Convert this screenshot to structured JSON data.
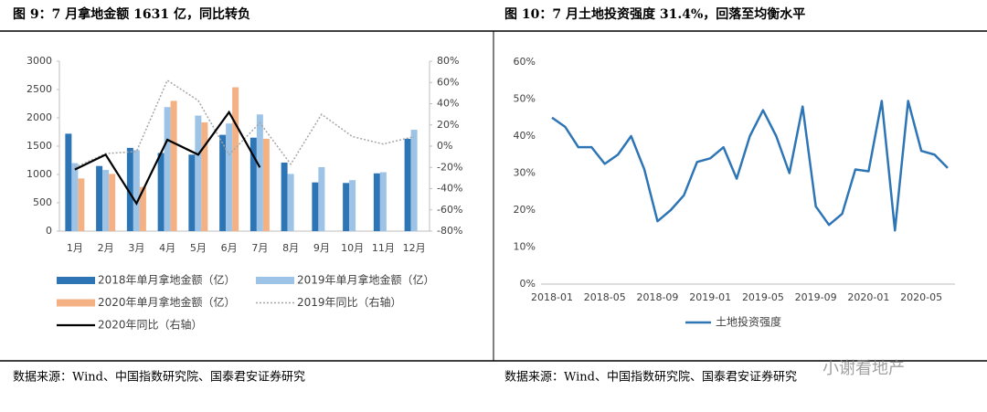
{
  "chart_data": [
    {
      "type": "combo",
      "title": "图 9：7 月拿地金额 1631 亿，同比转负",
      "categories": [
        "1月",
        "2月",
        "3月",
        "4月",
        "5月",
        "6月",
        "7月",
        "8月",
        "9月",
        "10月",
        "11月",
        "12月"
      ],
      "series": [
        {
          "name": "2018年单月拿地金额（亿）",
          "kind": "bar",
          "color": "#2e75b6",
          "values": [
            1720,
            1150,
            1470,
            1380,
            1350,
            1700,
            1650,
            1210,
            860,
            850,
            1020,
            1630
          ]
        },
        {
          "name": "2019年单月拿地金额（亿）",
          "kind": "bar",
          "color": "#9dc3e6",
          "values": [
            1200,
            1080,
            1430,
            2190,
            2040,
            1900,
            2060,
            1010,
            1130,
            900,
            1040,
            1790
          ]
        },
        {
          "name": "2020年单月拿地金额（亿）",
          "kind": "bar",
          "color": "#f4b183",
          "values": [
            930,
            1010,
            780,
            2300,
            1920,
            2540,
            1631,
            null,
            null,
            null,
            null,
            null
          ]
        },
        {
          "name": "2019年同比（右轴）",
          "kind": "line",
          "axis": "y2",
          "style": "dotted",
          "color": "#a6a6a6",
          "values": [
            -20,
            -7,
            -5,
            62,
            43,
            -8,
            22,
            -17,
            30,
            9,
            2,
            9
          ]
        },
        {
          "name": "2020年同比（右轴）",
          "kind": "line",
          "axis": "y2",
          "style": "solid",
          "color": "#000000",
          "values": [
            -22,
            -8,
            -54,
            6,
            -8,
            32,
            -20,
            null,
            null,
            null,
            null,
            null
          ]
        }
      ],
      "ylim": [
        0,
        3000
      ],
      "yticks": [
        0,
        500,
        1000,
        1500,
        2000,
        2500,
        3000
      ],
      "y2lim": [
        -80,
        80
      ],
      "y2ticks": [
        {
          "value": -80,
          "label": "-80%"
        },
        {
          "value": -60,
          "label": "-60%"
        },
        {
          "value": -40,
          "label": "-40%"
        },
        {
          "value": -20,
          "label": "-20%"
        },
        {
          "value": 0,
          "label": "0%"
        },
        {
          "value": 20,
          "label": "20%"
        },
        {
          "value": 40,
          "label": "40%"
        },
        {
          "value": 60,
          "label": "60%"
        },
        {
          "value": 80,
          "label": "80%"
        }
      ],
      "source": "数据来源：Wind、中国指数研究院、国泰君安证券研究"
    },
    {
      "type": "line",
      "title": "图 10：7 月土地投资强度 31.4%，回落至均衡水平",
      "categories": [
        "2018-01",
        null,
        null,
        null,
        "2018-05",
        null,
        null,
        null,
        "2018-09",
        null,
        null,
        null,
        "2019-01",
        null,
        null,
        null,
        "2019-05",
        null,
        null,
        null,
        "2019-09",
        null,
        null,
        null,
        "2020-01",
        null,
        null,
        null,
        "2020-05",
        null,
        null
      ],
      "series": [
        {
          "name": "土地投资强度",
          "color": "#2e75b6",
          "values": [
            45,
            42.5,
            37,
            37,
            32.5,
            35,
            40,
            31,
            17,
            20,
            24,
            33,
            34,
            37,
            28.5,
            40,
            47,
            40,
            30,
            48,
            21,
            16,
            19,
            31,
            30.5,
            49.5,
            14.5,
            49.5,
            36,
            35,
            31.4
          ]
        }
      ],
      "ylim": [
        0,
        60
      ],
      "yticks": [
        {
          "value": 0,
          "label": "0%"
        },
        {
          "value": 10,
          "label": "10%"
        },
        {
          "value": 20,
          "label": "20%"
        },
        {
          "value": 30,
          "label": "30%"
        },
        {
          "value": 40,
          "label": "40%"
        },
        {
          "value": 50,
          "label": "50%"
        },
        {
          "value": 60,
          "label": "60%"
        }
      ],
      "source": "数据来源：Wind、中国指数研究院、国泰君安证券研究"
    }
  ],
  "watermark": "小谢看地产"
}
